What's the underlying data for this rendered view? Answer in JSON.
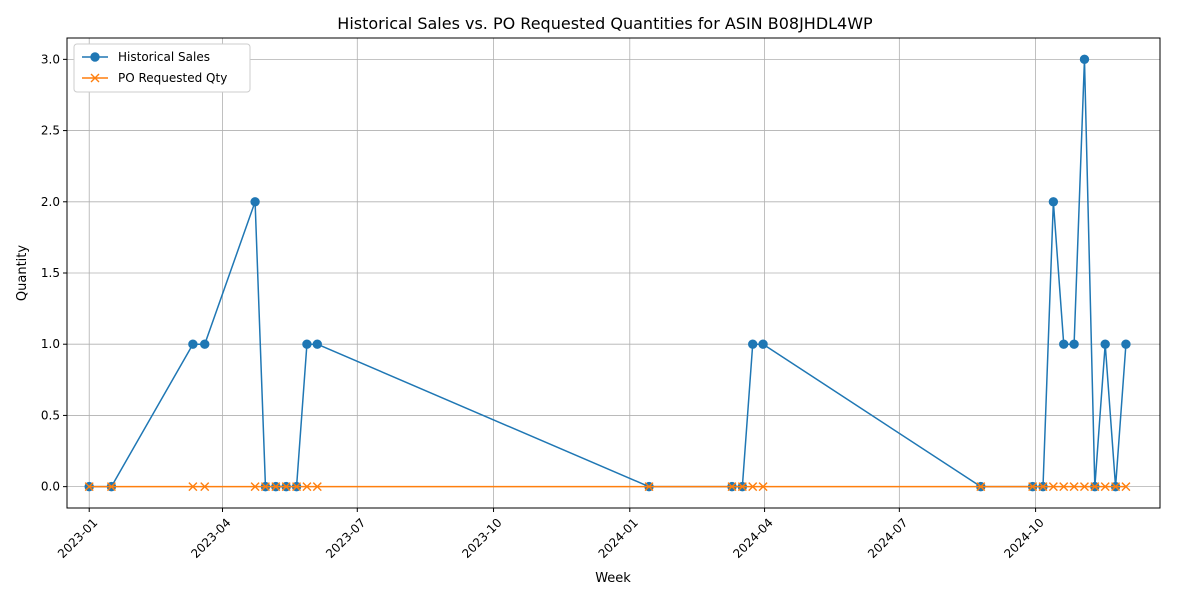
{
  "chart_data": {
    "type": "line",
    "title": "Historical Sales vs. PO Requested Quantities for ASIN B08JHDL4WP",
    "xlabel": "Week",
    "ylabel": "Quantity",
    "xlim": [
      "2022-12-17",
      "2024-12-24"
    ],
    "ylim": [
      -0.15,
      3.15
    ],
    "grid": true,
    "legend_position": "top-left",
    "x_ticks": [
      {
        "date": "2023-01-01",
        "label": "2023-01"
      },
      {
        "date": "2023-04-01",
        "label": "2023-04"
      },
      {
        "date": "2023-07-01",
        "label": "2023-07"
      },
      {
        "date": "2023-10-01",
        "label": "2023-10"
      },
      {
        "date": "2024-01-01",
        "label": "2024-01"
      },
      {
        "date": "2024-04-01",
        "label": "2024-04"
      },
      {
        "date": "2024-07-01",
        "label": "2024-07"
      },
      {
        "date": "2024-10-01",
        "label": "2024-10"
      },
      {
        "date": "2025-01-01",
        "label": "2025-01"
      }
    ],
    "y_ticks": [
      {
        "value": 0.0,
        "label": "0.0"
      },
      {
        "value": 0.5,
        "label": "0.5"
      },
      {
        "value": 1.0,
        "label": "1.0"
      },
      {
        "value": 1.5,
        "label": "1.5"
      },
      {
        "value": 2.0,
        "label": "2.0"
      },
      {
        "value": 2.5,
        "label": "2.5"
      },
      {
        "value": 3.0,
        "label": "3.0"
      }
    ],
    "series": [
      {
        "name": "Historical Sales",
        "color": "#1f77b4",
        "marker": "circle",
        "points": [
          {
            "x": "2023-01-01",
            "y": 0
          },
          {
            "x": "2023-01-16",
            "y": 0
          },
          {
            "x": "2023-03-12",
            "y": 1
          },
          {
            "x": "2023-03-20",
            "y": 1
          },
          {
            "x": "2023-04-23",
            "y": 2
          },
          {
            "x": "2023-04-30",
            "y": 0
          },
          {
            "x": "2023-05-07",
            "y": 0
          },
          {
            "x": "2023-05-14",
            "y": 0
          },
          {
            "x": "2023-05-21",
            "y": 0
          },
          {
            "x": "2023-05-28",
            "y": 1
          },
          {
            "x": "2023-06-04",
            "y": 1
          },
          {
            "x": "2024-01-14",
            "y": 0
          },
          {
            "x": "2024-03-10",
            "y": 0
          },
          {
            "x": "2024-03-17",
            "y": 0
          },
          {
            "x": "2024-03-24",
            "y": 1
          },
          {
            "x": "2024-03-31",
            "y": 1
          },
          {
            "x": "2024-08-25",
            "y": 0
          },
          {
            "x": "2024-09-29",
            "y": 0
          },
          {
            "x": "2024-10-06",
            "y": 0
          },
          {
            "x": "2024-10-13",
            "y": 2
          },
          {
            "x": "2024-10-20",
            "y": 1
          },
          {
            "x": "2024-10-27",
            "y": 1
          },
          {
            "x": "2024-11-03",
            "y": 3
          },
          {
            "x": "2024-11-10",
            "y": 0
          },
          {
            "x": "2024-11-17",
            "y": 1
          },
          {
            "x": "2024-11-24",
            "y": 0
          },
          {
            "x": "2024-12-01",
            "y": 1
          }
        ]
      },
      {
        "name": "PO Requested Qty",
        "color": "#ff7f0e",
        "marker": "x",
        "points": [
          {
            "x": "2023-01-01",
            "y": 0
          },
          {
            "x": "2023-01-16",
            "y": 0
          },
          {
            "x": "2023-03-12",
            "y": 0
          },
          {
            "x": "2023-03-20",
            "y": 0
          },
          {
            "x": "2023-04-23",
            "y": 0
          },
          {
            "x": "2023-04-30",
            "y": 0
          },
          {
            "x": "2023-05-07",
            "y": 0
          },
          {
            "x": "2023-05-14",
            "y": 0
          },
          {
            "x": "2023-05-21",
            "y": 0
          },
          {
            "x": "2023-05-28",
            "y": 0
          },
          {
            "x": "2023-06-04",
            "y": 0
          },
          {
            "x": "2024-01-14",
            "y": 0
          },
          {
            "x": "2024-03-10",
            "y": 0
          },
          {
            "x": "2024-03-17",
            "y": 0
          },
          {
            "x": "2024-03-24",
            "y": 0
          },
          {
            "x": "2024-03-31",
            "y": 0
          },
          {
            "x": "2024-08-25",
            "y": 0
          },
          {
            "x": "2024-09-29",
            "y": 0
          },
          {
            "x": "2024-10-06",
            "y": 0
          },
          {
            "x": "2024-10-13",
            "y": 0
          },
          {
            "x": "2024-10-20",
            "y": 0
          },
          {
            "x": "2024-10-27",
            "y": 0
          },
          {
            "x": "2024-11-03",
            "y": 0
          },
          {
            "x": "2024-11-10",
            "y": 0
          },
          {
            "x": "2024-11-17",
            "y": 0
          },
          {
            "x": "2024-11-24",
            "y": 0
          },
          {
            "x": "2024-12-01",
            "y": 0
          }
        ]
      }
    ]
  }
}
